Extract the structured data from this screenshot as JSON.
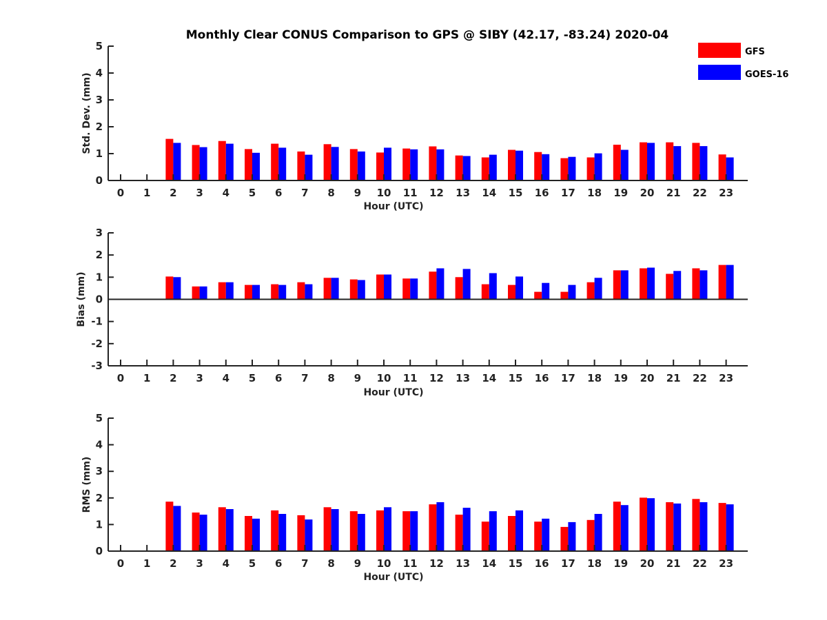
{
  "chart_data": [
    {
      "type": "bar",
      "title": "Monthly Clear CONUS Comparison to GPS @ SIBY (42.17, -83.24) 2020-04",
      "xlabel": "Hour (UTC)",
      "ylabel": "Std. Dev. (mm)",
      "ylim": [
        0,
        5
      ],
      "yticks": [
        "0",
        "1",
        "2",
        "3",
        "4",
        "5"
      ],
      "categories": [
        "0",
        "1",
        "2",
        "3",
        "4",
        "5",
        "6",
        "7",
        "8",
        "9",
        "10",
        "11",
        "12",
        "13",
        "14",
        "15",
        "16",
        "17",
        "18",
        "19",
        "20",
        "21",
        "22",
        "23"
      ],
      "series": [
        {
          "name": "GFS",
          "color": "#ff0000",
          "values": [
            null,
            null,
            1.55,
            1.32,
            1.47,
            1.17,
            1.37,
            1.08,
            1.35,
            1.17,
            1.04,
            1.19,
            1.27,
            0.93,
            0.86,
            1.14,
            1.06,
            0.83,
            0.86,
            1.33,
            1.42,
            1.42,
            1.4,
            0.97
          ]
        },
        {
          "name": "GOES-16",
          "color": "#0000ff",
          "values": [
            null,
            null,
            1.4,
            1.24,
            1.37,
            1.03,
            1.22,
            0.96,
            1.25,
            1.08,
            1.22,
            1.16,
            1.16,
            0.91,
            0.96,
            1.11,
            0.98,
            0.88,
            1.01,
            1.14,
            1.4,
            1.28,
            1.28,
            0.86
          ]
        }
      ],
      "legend": "top-right"
    },
    {
      "type": "bar",
      "xlabel": "Hour (UTC)",
      "ylabel": "Bias (mm)",
      "ylim": [
        -3,
        3
      ],
      "yticks": [
        "-3",
        "-2",
        "-1",
        "0",
        "1",
        "2",
        "3"
      ],
      "categories": [
        "0",
        "1",
        "2",
        "3",
        "4",
        "5",
        "6",
        "7",
        "8",
        "9",
        "10",
        "11",
        "12",
        "13",
        "14",
        "15",
        "16",
        "17",
        "18",
        "19",
        "20",
        "21",
        "22",
        "23"
      ],
      "series": [
        {
          "name": "GFS",
          "color": "#ff0000",
          "values": [
            null,
            null,
            1.03,
            0.58,
            0.77,
            0.65,
            0.68,
            0.77,
            0.97,
            0.9,
            1.12,
            0.94,
            1.25,
            1.0,
            0.68,
            0.65,
            0.34,
            0.34,
            0.77,
            1.31,
            1.4,
            1.15,
            1.4,
            1.55
          ]
        },
        {
          "name": "GOES-16",
          "color": "#0000ff",
          "values": [
            null,
            null,
            1.0,
            0.58,
            0.77,
            0.65,
            0.65,
            0.68,
            0.97,
            0.87,
            1.12,
            0.94,
            1.4,
            1.37,
            1.18,
            1.03,
            0.74,
            0.65,
            0.97,
            1.31,
            1.43,
            1.28,
            1.31,
            1.55
          ]
        }
      ]
    },
    {
      "type": "bar",
      "xlabel": "Hour (UTC)",
      "ylabel": "RMS (mm)",
      "ylim": [
        0,
        5
      ],
      "yticks": [
        "0",
        "1",
        "2",
        "3",
        "4",
        "5"
      ],
      "categories": [
        "0",
        "1",
        "2",
        "3",
        "4",
        "5",
        "6",
        "7",
        "8",
        "9",
        "10",
        "11",
        "12",
        "13",
        "14",
        "15",
        "16",
        "17",
        "18",
        "19",
        "20",
        "21",
        "22",
        "23"
      ],
      "series": [
        {
          "name": "GFS",
          "color": "#ff0000",
          "values": [
            null,
            null,
            1.86,
            1.45,
            1.65,
            1.32,
            1.53,
            1.35,
            1.65,
            1.5,
            1.53,
            1.5,
            1.76,
            1.37,
            1.11,
            1.32,
            1.11,
            0.91,
            1.17,
            1.86,
            2.01,
            1.84,
            1.96,
            1.81
          ]
        },
        {
          "name": "GOES-16",
          "color": "#0000ff",
          "values": [
            null,
            null,
            1.7,
            1.37,
            1.58,
            1.22,
            1.4,
            1.19,
            1.58,
            1.4,
            1.65,
            1.5,
            1.84,
            1.63,
            1.5,
            1.53,
            1.22,
            1.09,
            1.4,
            1.73,
            1.99,
            1.79,
            1.84,
            1.76
          ]
        }
      ]
    }
  ]
}
